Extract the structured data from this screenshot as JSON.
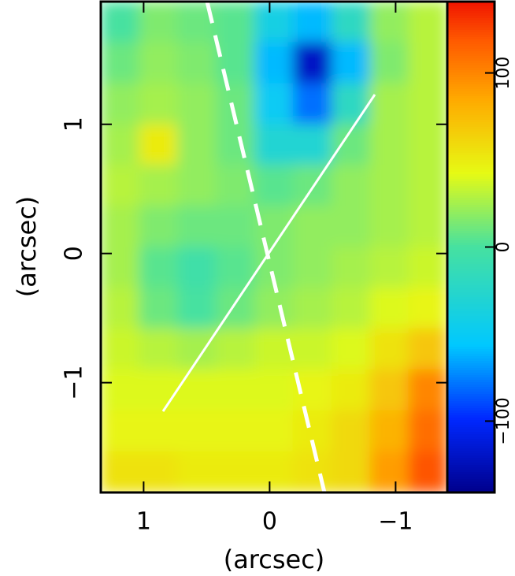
{
  "chart_data": {
    "type": "heatmap",
    "xlabel": "(arcsec)",
    "ylabel": "(arcsec)",
    "xlim": [
      1.34,
      -1.41
    ],
    "ylim": [
      -1.85,
      1.95
    ],
    "xticks": [
      1,
      0,
      {
        "value": -1,
        "label": "−1"
      }
    ],
    "yticks": [
      {
        "value": -1,
        "label": "−1"
      },
      0,
      1
    ],
    "clim": [
      -141,
      141
    ],
    "cticks": [
      {
        "value": -100,
        "label": "−100"
      },
      0,
      100
    ],
    "z": [
      [
        0,
        15,
        10,
        5,
        -40,
        -60,
        -20,
        20,
        30
      ],
      [
        10,
        20,
        15,
        5,
        -60,
        -120,
        -60,
        15,
        30
      ],
      [
        20,
        25,
        20,
        10,
        -50,
        -80,
        -20,
        25,
        30
      ],
      [
        25,
        50,
        20,
        10,
        -30,
        -30,
        10,
        25,
        30
      ],
      [
        30,
        25,
        20,
        15,
        5,
        10,
        20,
        25,
        30
      ],
      [
        25,
        15,
        10,
        10,
        15,
        20,
        20,
        25,
        30
      ],
      [
        25,
        5,
        -5,
        5,
        15,
        20,
        25,
        30,
        35
      ],
      [
        30,
        10,
        0,
        10,
        20,
        25,
        30,
        40,
        45
      ],
      [
        35,
        30,
        25,
        30,
        35,
        35,
        40,
        55,
        70
      ],
      [
        40,
        40,
        40,
        40,
        40,
        45,
        50,
        70,
        100
      ],
      [
        45,
        45,
        45,
        45,
        45,
        50,
        60,
        80,
        110
      ],
      [
        55,
        55,
        50,
        50,
        50,
        55,
        60,
        90,
        120
      ]
    ]
  }
}
